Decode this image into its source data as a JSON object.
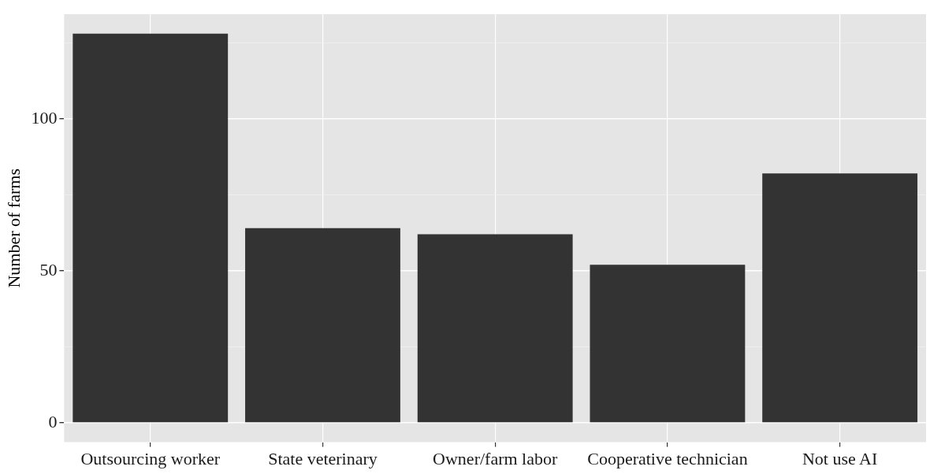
{
  "chart_data": {
    "type": "bar",
    "ylabel": "Number of farms",
    "categories": [
      "Outsourcing worker",
      "State veterinary",
      "Owner/farm labor",
      "Cooperative technician",
      "Not use AI"
    ],
    "values": [
      128,
      64,
      62,
      52,
      82
    ],
    "color": "#333333",
    "ylim": [
      -6.4,
      134.4
    ],
    "yticks": [
      0,
      {
        "value": 25,
        "label": null
      },
      50,
      {
        "value": 75,
        "label": null
      },
      100,
      {
        "value": 125,
        "label": null
      }
    ],
    "grid": true,
    "legend": false
  }
}
